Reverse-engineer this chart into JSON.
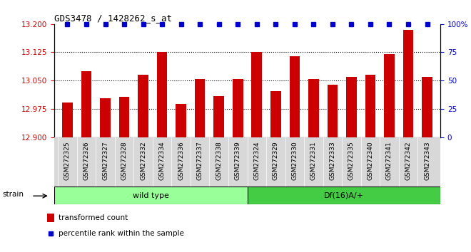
{
  "title": "GDS3478 / 1428262_s_at",
  "categories": [
    "GSM272325",
    "GSM272326",
    "GSM272327",
    "GSM272328",
    "GSM272332",
    "GSM272334",
    "GSM272336",
    "GSM272337",
    "GSM272338",
    "GSM272339",
    "GSM272324",
    "GSM272329",
    "GSM272330",
    "GSM272331",
    "GSM272333",
    "GSM272335",
    "GSM272340",
    "GSM272341",
    "GSM272342",
    "GSM272343"
  ],
  "bar_values": [
    12.993,
    13.075,
    13.003,
    13.007,
    13.065,
    13.125,
    12.988,
    13.055,
    13.01,
    13.055,
    13.125,
    13.023,
    13.115,
    13.055,
    13.04,
    13.06,
    13.065,
    13.12,
    13.185,
    13.06
  ],
  "ylim_left": [
    12.9,
    13.2
  ],
  "ylim_right": [
    0,
    100
  ],
  "yticks_left": [
    12.9,
    12.975,
    13.05,
    13.125,
    13.2
  ],
  "yticks_right": [
    0,
    25,
    50,
    75,
    100
  ],
  "grid_values": [
    12.975,
    13.05,
    13.125
  ],
  "bar_color": "#CC0000",
  "dot_color": "#0000CC",
  "wild_type_count": 10,
  "df16_count": 10,
  "wild_type_label": "wild type",
  "df16_label": "Df(16)A/+",
  "strain_label": "strain",
  "legend_bar_label": "transformed count",
  "legend_dot_label": "percentile rank within the sample",
  "bg_color_wt": "#99FF99",
  "bg_color_df": "#44CC44",
  "tick_label_color_left": "#CC0000",
  "tick_label_color_right": "#0000CC",
  "title_color": "#000000",
  "plot_bg": "#FFFFFF",
  "xticklabel_bg": "#D8D8D8"
}
